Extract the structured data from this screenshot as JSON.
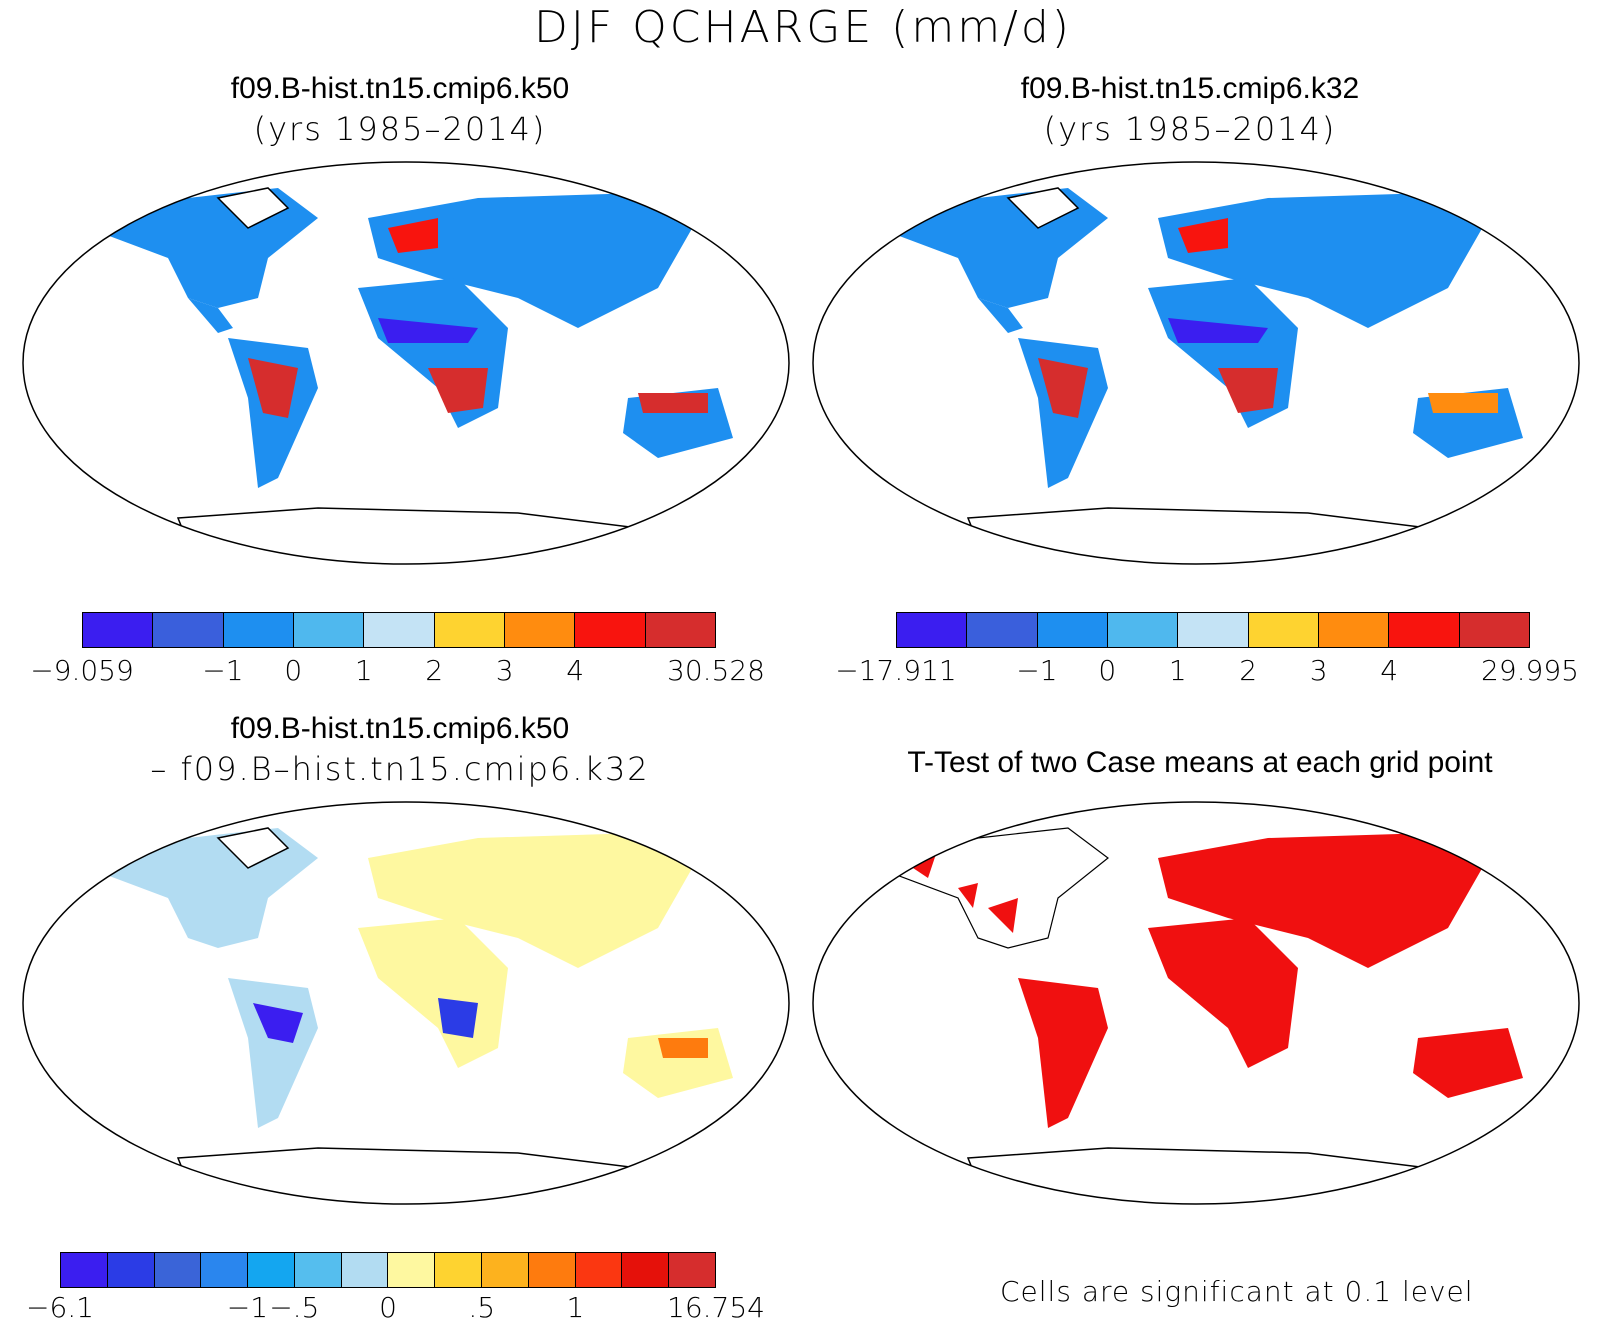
{
  "title": "DJF QCHARGE (mm/d)",
  "panels": [
    {
      "line1": "f09.B-hist.tn15.cmip6.k50",
      "line2": "(yrs 1985–2014)"
    },
    {
      "line1": "f09.B-hist.tn15.cmip6.k32",
      "line2": "(yrs 1985–2014)"
    },
    {
      "line1": "f09.B-hist.tn15.cmip6.k50",
      "line2": "– f09.B–hist.tn15.cmip6.k32"
    },
    {
      "line1": "T-Test of two Case means at each grid point",
      "line2": ""
    }
  ],
  "colorbars": [
    {
      "colors": [
        "#3b1ef0",
        "#3a5fdc",
        "#1e8ff0",
        "#4fb8ee",
        "#c4e3f5",
        "#fed330",
        "#ff8c0f",
        "#f8140e",
        "#d62d2d"
      ],
      "labels": [
        "−9.059",
        "−1",
        "0",
        "1",
        "2",
        "3",
        "4",
        "30.528"
      ]
    },
    {
      "colors": [
        "#3b1ef0",
        "#3a5fdc",
        "#1e8ff0",
        "#4fb8ee",
        "#c4e3f5",
        "#fed330",
        "#ff8c0f",
        "#f8140e",
        "#d62d2d"
      ],
      "labels": [
        "−17.911",
        "−1",
        "0",
        "1",
        "2",
        "3",
        "4",
        "29.995"
      ]
    },
    {
      "colors": [
        "#3b1ef0",
        "#2b3ce6",
        "#3a64d8",
        "#2a86ee",
        "#14a6f0",
        "#55beee",
        "#b2dcf2",
        "#fef8a0",
        "#fed330",
        "#fdb21e",
        "#fe7b0e",
        "#fb3711",
        "#e5110a",
        "#d62d2d"
      ],
      "labels": [
        "−6.1",
        "−1",
        "−.5",
        "0",
        ".5",
        "1",
        "16.754"
      ]
    }
  ],
  "significance_note": "Cells are significant at 0.1 level"
}
